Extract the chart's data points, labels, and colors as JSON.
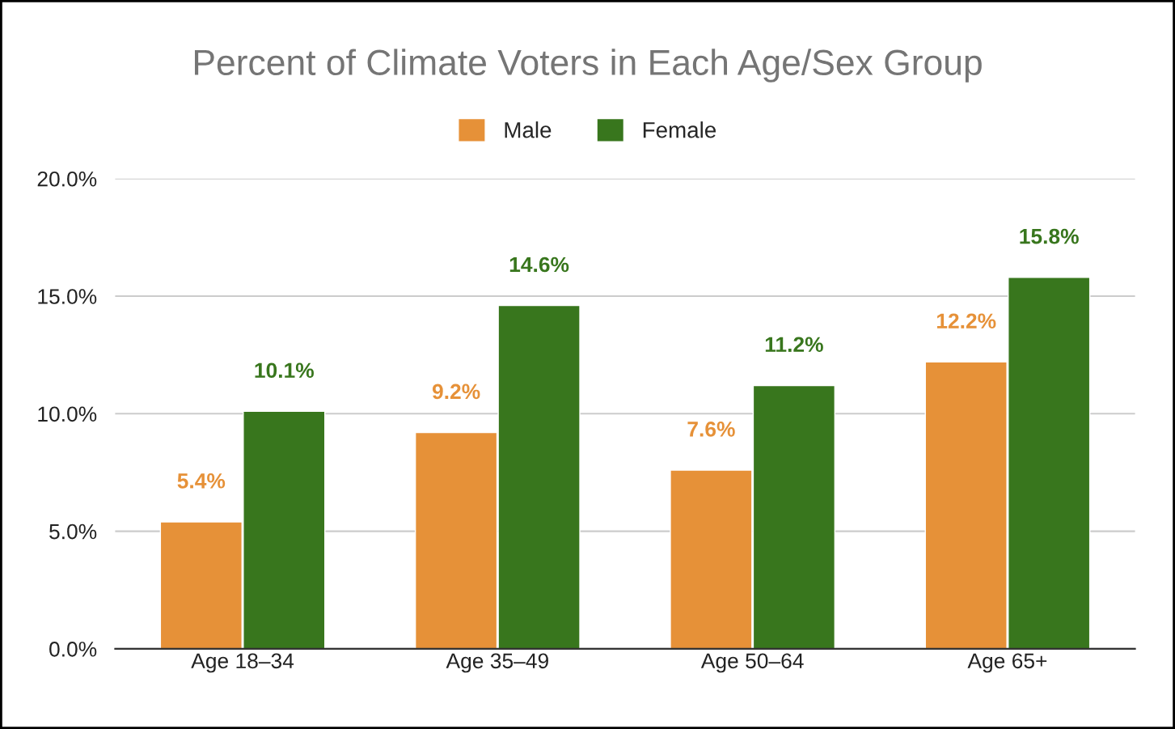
{
  "chart_data": {
    "type": "bar",
    "title": "Percent of Climate Voters in Each Age/Sex Group",
    "categories": [
      "Age 18–34",
      "Age 35–49",
      "Age 50–64",
      "Age 65+"
    ],
    "series": [
      {
        "name": "Male",
        "color": "#e69138",
        "values": [
          5.4,
          9.2,
          7.6,
          12.2
        ],
        "value_labels": [
          "5.4%",
          "9.2%",
          "7.6%",
          "12.2%"
        ]
      },
      {
        "name": "Female",
        "color": "#38761d",
        "values": [
          10.1,
          14.6,
          11.2,
          15.8
        ],
        "value_labels": [
          "10.1%",
          "14.6%",
          "11.2%",
          "15.8%"
        ]
      }
    ],
    "ylim": [
      0,
      20
    ],
    "yticks": [
      {
        "value": 0,
        "label": "0.0%"
      },
      {
        "value": 5,
        "label": "5.0%"
      },
      {
        "value": 10,
        "label": "10.0%"
      },
      {
        "value": 15,
        "label": "15.0%"
      },
      {
        "value": 20,
        "label": "20.0%"
      }
    ],
    "grid": "y",
    "legend": "top"
  }
}
